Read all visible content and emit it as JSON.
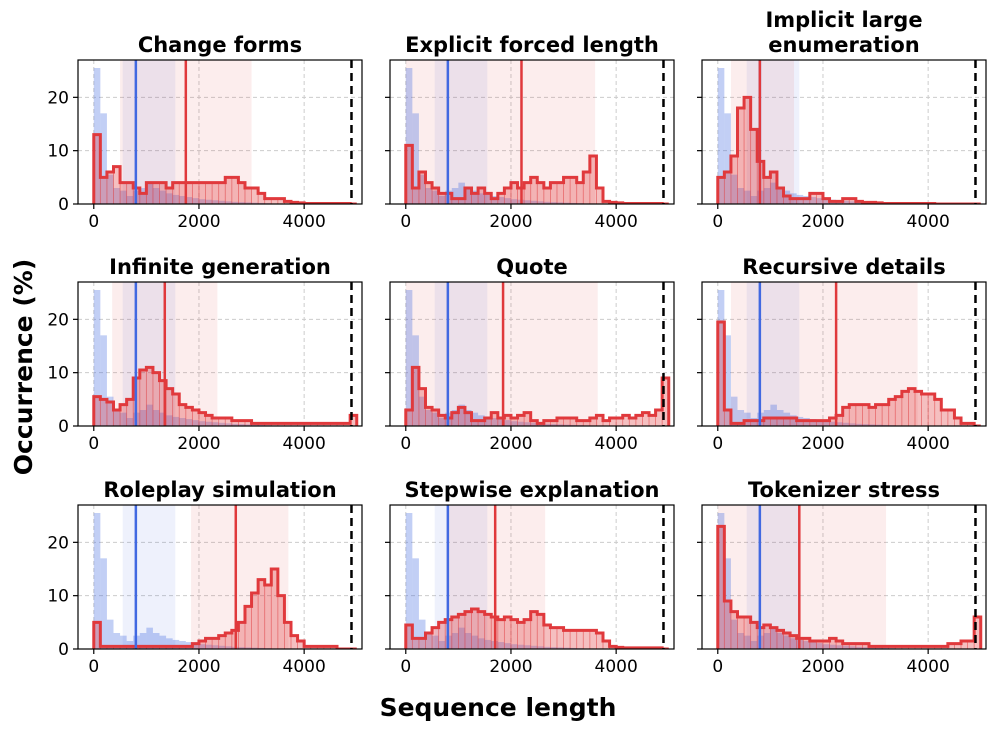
{
  "figure": {
    "xlabel": "Sequence length",
    "ylabel": "Occurrence (%)"
  },
  "chart_data": {
    "type": "histogram-grid",
    "bin_width": 125,
    "xlim": [
      -300,
      5100
    ],
    "ylim": [
      0,
      27
    ],
    "xticks": [
      0,
      2000,
      4000
    ],
    "yticks": [
      0,
      10,
      20
    ],
    "max_length": 4900,
    "grid": true,
    "colors": {
      "baseline": "#4169e1",
      "target": "#e0393c",
      "limit": "#000000"
    },
    "baseline": {
      "name": "baseline",
      "mean": 800,
      "band": [
        550,
        1550
      ],
      "values": [
        25.5,
        17,
        5.5,
        3,
        2.5,
        1.5,
        2.5,
        3,
        4,
        3,
        2.5,
        2,
        1.7,
        1.5,
        1.3,
        1.1,
        0.9,
        0.8,
        0.7,
        0.6,
        0.5,
        0.4,
        0.35,
        0.3,
        0.25,
        0.2,
        0.15,
        0.1,
        0.1,
        0.05,
        0.05,
        0.05,
        0.05,
        0.05,
        0.05,
        0.05,
        0.05,
        0.05,
        0.05,
        0.05
      ]
    },
    "panels": [
      {
        "title": "Change forms",
        "mean": 1750,
        "band": [
          500,
          3000
        ],
        "values": [
          13,
          5,
          6,
          7,
          4,
          4,
          3,
          2,
          4,
          4,
          4,
          3,
          4,
          4,
          4,
          4,
          4,
          4,
          4,
          4,
          5,
          5,
          4,
          3,
          3,
          2,
          1,
          1,
          1,
          0.5,
          0.3,
          0.2,
          0.1,
          0.1,
          0.1,
          0.1,
          0.1,
          0.1,
          0.1,
          0
        ]
      },
      {
        "title": "Explicit forced length",
        "mean": 2200,
        "band": [
          0,
          3600
        ],
        "values": [
          11,
          3,
          6,
          4,
          3,
          2,
          2,
          1,
          1,
          3,
          2,
          3,
          2,
          1,
          2,
          3,
          4,
          3,
          4,
          5,
          4,
          3,
          4,
          4,
          5,
          5,
          4,
          6,
          9,
          3,
          0.5,
          0.3,
          0.2,
          0.1,
          0.1,
          0.1,
          0.1,
          0.1,
          0.1,
          0
        ]
      },
      {
        "title": "Implicit large enumeration",
        "mean": 800,
        "band": [
          250,
          1450
        ],
        "values": [
          5,
          6,
          9,
          18,
          20,
          14,
          8,
          5,
          6,
          3,
          1.5,
          1,
          1,
          1,
          2,
          2,
          1,
          0.5,
          0.5,
          1,
          1,
          0.5,
          0.3,
          0.3,
          0.2,
          0.1,
          0.1,
          0.1,
          0.1,
          0.1,
          0.1,
          0.1,
          0.1,
          0,
          0,
          0,
          0,
          0,
          0,
          0
        ]
      },
      {
        "title": "Infinite generation",
        "mean": 1350,
        "band": [
          350,
          2350
        ],
        "values": [
          5.5,
          5,
          4.5,
          3,
          4,
          5,
          9,
          10.5,
          11,
          10,
          8.5,
          7,
          6,
          4,
          3.5,
          3,
          2.5,
          2,
          1.5,
          1.5,
          1.5,
          1,
          1,
          1,
          0.5,
          0.5,
          0.5,
          0.5,
          0.5,
          0.5,
          0.5,
          0.5,
          0.5,
          0.5,
          0.5,
          0.5,
          0.5,
          0.5,
          0.5,
          2
        ]
      },
      {
        "title": "Quote",
        "mean": 1850,
        "band": [
          0,
          3650
        ],
        "values": [
          3,
          11,
          7,
          3.5,
          3,
          2,
          1.5,
          2.5,
          3.5,
          2.5,
          1,
          1,
          1.5,
          2.5,
          1.5,
          2,
          1.5,
          2,
          2.5,
          1,
          0.5,
          1,
          1,
          1.5,
          1.5,
          1.5,
          1,
          1,
          1.5,
          2,
          1,
          1.5,
          1.5,
          2,
          1.5,
          2,
          2.5,
          2,
          3,
          9
        ]
      },
      {
        "title": "Recursive details",
        "mean": 2250,
        "band": [
          250,
          3800
        ],
        "values": [
          19.5,
          3,
          0.5,
          0.5,
          1,
          1,
          1,
          1.5,
          1.5,
          1.5,
          1.5,
          1.5,
          1,
          1,
          1,
          1,
          1,
          1.5,
          2,
          3.5,
          4,
          4,
          4,
          3.5,
          4,
          4,
          5,
          5.5,
          6.5,
          7,
          6.5,
          6,
          6,
          5,
          3,
          3,
          1.5,
          0.5,
          0.5,
          0
        ]
      },
      {
        "title": "Roleplay simulation",
        "mean": 2700,
        "band": [
          1850,
          3700
        ],
        "values": [
          5,
          0.5,
          0.5,
          0.5,
          0.5,
          0.5,
          0.5,
          0.5,
          0.5,
          0.5,
          0.5,
          0.5,
          0.5,
          0.5,
          0.5,
          1,
          1.5,
          2,
          2,
          2.5,
          3,
          3.5,
          5,
          8,
          10.5,
          13,
          12,
          15,
          10,
          5,
          2.5,
          1.5,
          0.5,
          0.5,
          0.5,
          0.5,
          0.5,
          0,
          0,
          0
        ]
      },
      {
        "title": "Stepwise explanation",
        "mean": 1700,
        "band": [
          800,
          2650
        ],
        "values": [
          4.5,
          2,
          2,
          3,
          4,
          5,
          5.5,
          6,
          6.5,
          7,
          7.5,
          7,
          6.5,
          6,
          5.5,
          6,
          5.5,
          5,
          5.5,
          7,
          6.5,
          4.5,
          4,
          4,
          3.5,
          3.5,
          3.5,
          3.5,
          3.5,
          3,
          1.5,
          0.5,
          0.3,
          0.2,
          0.2,
          0.2,
          0.2,
          0.2,
          0.2,
          0
        ]
      },
      {
        "title": "Tokenizer stress",
        "mean": 1550,
        "band": [
          0,
          3200
        ],
        "values": [
          23,
          9,
          7,
          6,
          6,
          5,
          4,
          4.5,
          4,
          3.5,
          3,
          2.5,
          2,
          2,
          1.5,
          1.5,
          1.5,
          2,
          1.5,
          1,
          1,
          1,
          1,
          0.5,
          0.5,
          0.5,
          0.5,
          0.5,
          0.5,
          0.5,
          0.5,
          0.5,
          0.5,
          0.5,
          0.5,
          1,
          1,
          1.5,
          1.5,
          6
        ]
      }
    ]
  }
}
